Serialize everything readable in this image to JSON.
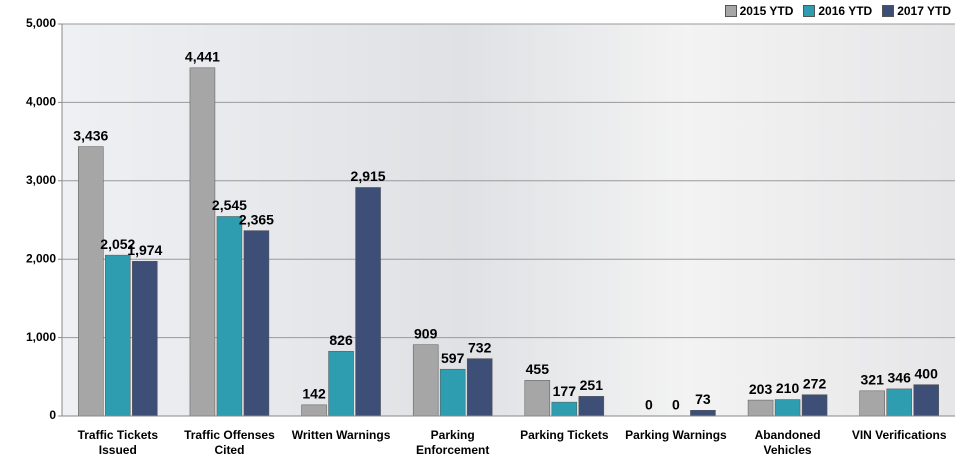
{
  "chart_data": {
    "type": "bar",
    "categories": [
      "Traffic Tickets Issued",
      "Traffic Offenses Cited",
      "Written Warnings",
      "Parking Enforcement",
      "Parking Tickets",
      "Parking Warnings",
      "Abandoned Vehicles",
      "VIN Verifications"
    ],
    "series": [
      {
        "name": "2015 YTD",
        "color": "#a6a6a6",
        "values": [
          3436,
          4441,
          142,
          909,
          455,
          0,
          203,
          321
        ],
        "value_labels": [
          "3,436",
          "4,441",
          "142",
          "909",
          "455",
          "0",
          "203",
          "321"
        ]
      },
      {
        "name": "2016 YTD",
        "color": "#2e9db0",
        "values": [
          2052,
          2545,
          826,
          597,
          177,
          0,
          210,
          346
        ],
        "value_labels": [
          "2,052",
          "2,545",
          "826",
          "597",
          "177",
          "0",
          "210",
          "346"
        ]
      },
      {
        "name": "2017 YTD",
        "color": "#3d4e77",
        "values": [
          1974,
          2365,
          2915,
          732,
          251,
          73,
          272,
          400
        ],
        "value_labels": [
          "1,974",
          "2,365",
          "2,915",
          "732",
          "251",
          "73",
          "272",
          "400"
        ]
      }
    ],
    "ylim": [
      0,
      5000
    ],
    "yticks": [
      0,
      {
        "value": 1000,
        "label": "1,000"
      },
      {
        "value": 2000,
        "label": "2,000"
      },
      {
        "value": 3000,
        "label": "3,000"
      },
      {
        "value": 4000,
        "label": "4,000"
      },
      {
        "value": 5000,
        "label": "5,000"
      }
    ],
    "grid": true,
    "legend": "top-right"
  }
}
